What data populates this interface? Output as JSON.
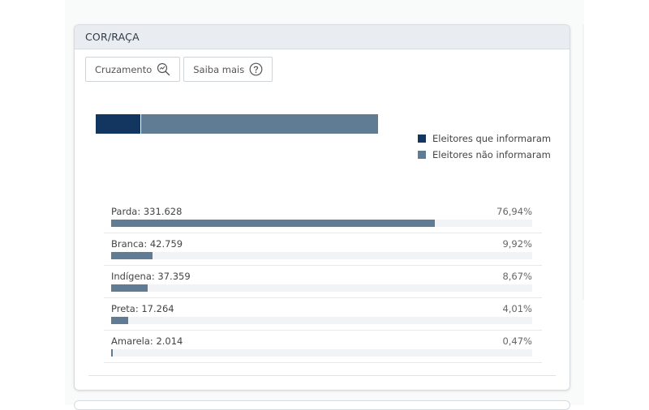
{
  "card": {
    "title": "COR/RAÇA",
    "buttons": {
      "cruzamento": "Cruzamento",
      "saiba_mais": "Saiba mais"
    }
  },
  "stack": {
    "informaram_fraction": 0.158,
    "legend": {
      "informaram": "Eleitores que informaram",
      "nao_informaram": "Eleitores não informaram"
    },
    "colors": {
      "informaram": "#12365f",
      "nao_informaram": "#5f7c94"
    }
  },
  "rows": [
    {
      "label": "Parda: 331.628",
      "pct": "76,94%",
      "value": 76.94
    },
    {
      "label": "Branca: 42.759",
      "pct": "9,92%",
      "value": 9.92
    },
    {
      "label": "Indígena: 37.359",
      "pct": "8,67%",
      "value": 8.67
    },
    {
      "label": "Preta: 17.264",
      "pct": "4,01%",
      "value": 4.01
    },
    {
      "label": "Amarela: 2.014",
      "pct": "0,47%",
      "value": 0.47
    }
  ]
}
